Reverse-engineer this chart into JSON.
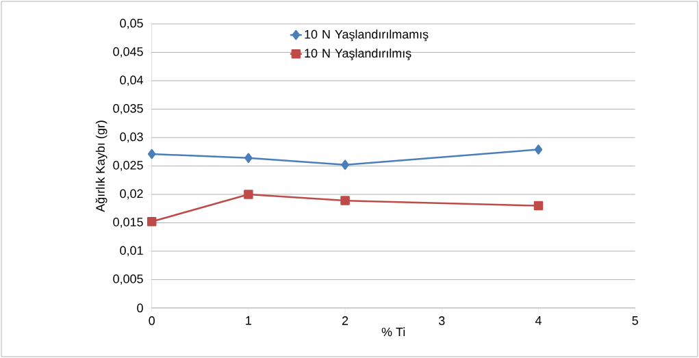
{
  "chart_data": {
    "type": "line",
    "xlabel": "% Ti",
    "ylabel": "Ağırlık Kaybı (gr)",
    "x": [
      0,
      1,
      2,
      4
    ],
    "series": [
      {
        "name": "10 N Yaşlandırılmamış",
        "color": "#4a7ebb",
        "marker": "diamond",
        "values": [
          0.0271,
          0.0264,
          0.0252,
          0.0279
        ]
      },
      {
        "name": "10 N Yaşlandırılmış",
        "color": "#be4b48",
        "marker": "square",
        "values": [
          0.0152,
          0.02,
          0.0189,
          0.018
        ]
      }
    ],
    "xlim": [
      0,
      5
    ],
    "xticks": [
      0,
      1,
      2,
      3,
      4,
      5
    ],
    "ylim": [
      0,
      0.05
    ],
    "yticks": [
      {
        "value": 0,
        "label": "0"
      },
      {
        "value": 0.005,
        "label": "0,005"
      },
      {
        "value": 0.01,
        "label": "0,01"
      },
      {
        "value": 0.015,
        "label": "0,015"
      },
      {
        "value": 0.02,
        "label": "0,02"
      },
      {
        "value": 0.025,
        "label": "0,025"
      },
      {
        "value": 0.03,
        "label": "0,03"
      },
      {
        "value": 0.035,
        "label": "0,035"
      },
      {
        "value": 0.04,
        "label": "0,04"
      },
      {
        "value": 0.045,
        "label": "0,045"
      },
      {
        "value": 0.05,
        "label": "0,05"
      }
    ],
    "grid": "y",
    "legend": "top",
    "line_style": "solid"
  }
}
